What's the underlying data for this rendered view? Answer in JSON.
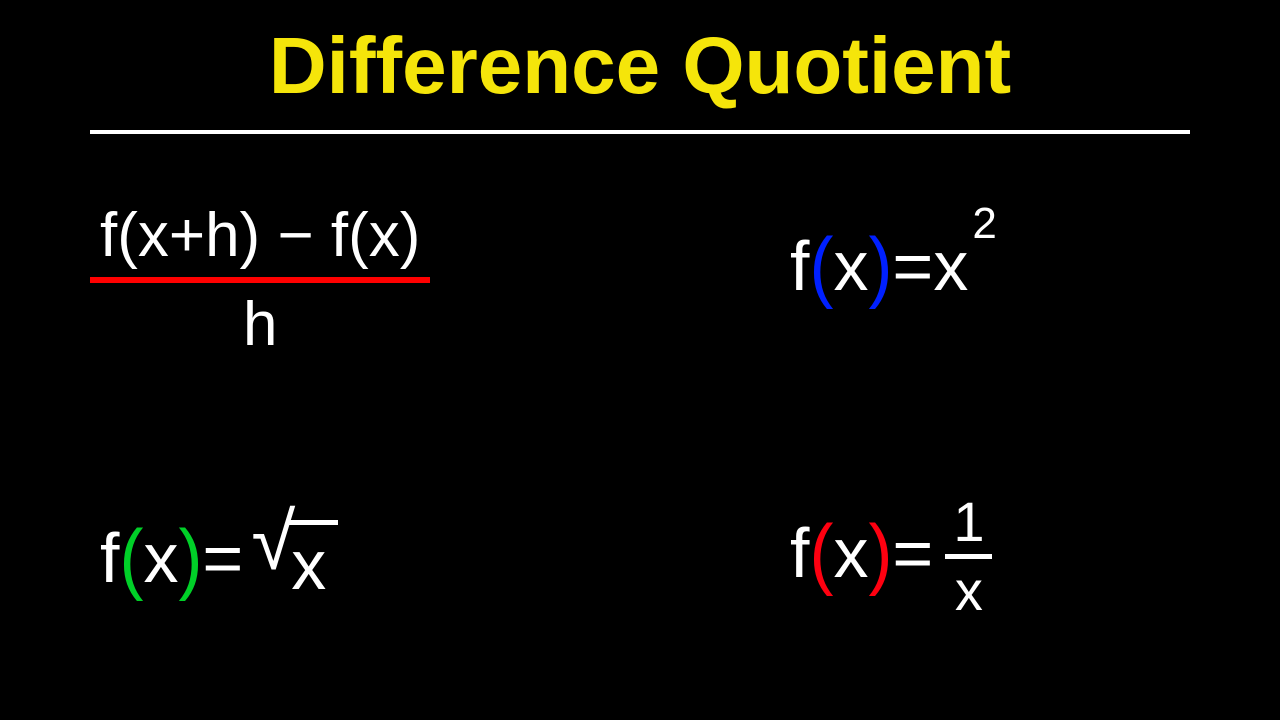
{
  "title": {
    "text": "Difference Quotient",
    "color": "#f5e50a",
    "fontsize": 80,
    "underline_color": "#ffffff"
  },
  "background_color": "#000000",
  "text_color": "#ffffff",
  "quotient": {
    "numerator_prefix": "f(x+h)",
    "numerator_minus": "−",
    "numerator_suffix": "f(x)",
    "denominator": "h",
    "frac_line_color": "#ff0000"
  },
  "eq1": {
    "f": "f",
    "lparen": "(",
    "x": "x",
    "rparen": ")",
    "eq": " = ",
    "rhs_base": "x",
    "rhs_sup": "2",
    "paren_color": "#0020ff"
  },
  "eq2": {
    "f": "f",
    "lparen": "(",
    "x": "x",
    "rparen": ")",
    "eq": " = ",
    "radical_sign": "√",
    "radicand": "x",
    "paren_color": "#00d028"
  },
  "eq3": {
    "f": "f",
    "lparen": "(",
    "x": "x",
    "rparen": ")",
    "eq": " = ",
    "frac_top": "1",
    "frac_bot": "x",
    "paren_color": "#ff0010"
  }
}
